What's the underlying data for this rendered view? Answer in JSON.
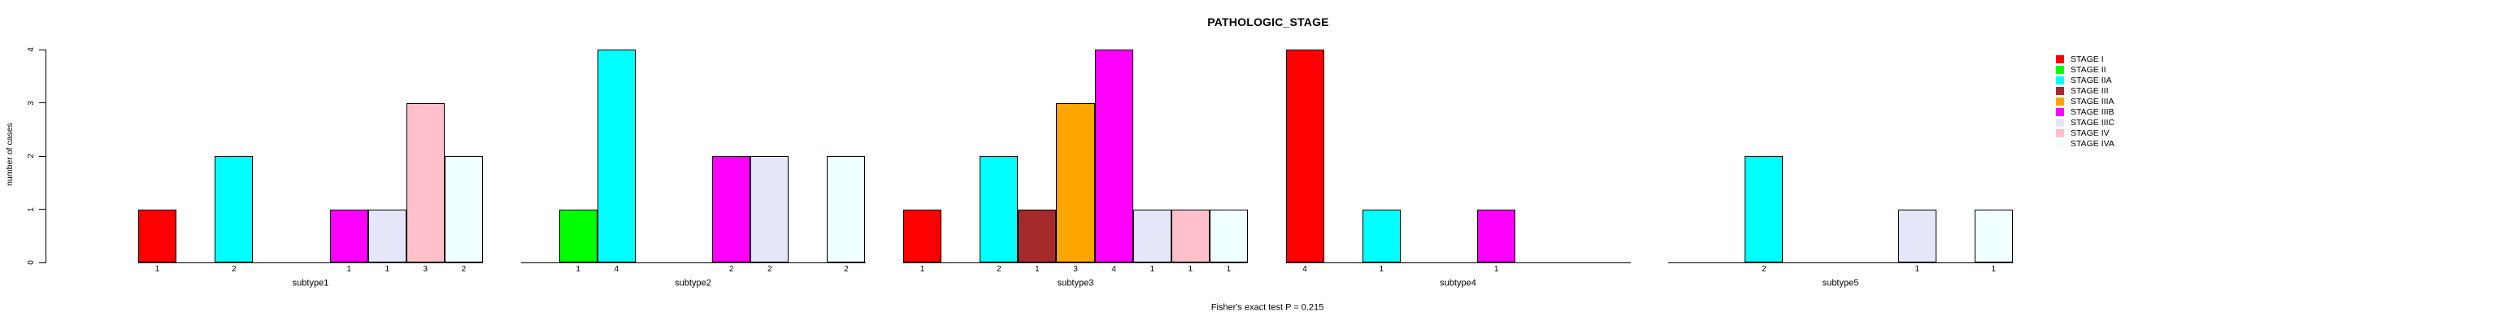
{
  "chart_data": {
    "type": "bar",
    "title": "PATHOLOGIC_STAGE",
    "xlabel": "",
    "ylabel": "number of cases",
    "footer": "Fisher's exact test P = 0.215",
    "ylim": [
      0,
      4
    ],
    "yticks": [
      "0",
      "1",
      "2",
      "3",
      "4"
    ],
    "grid": false,
    "legend_position": "top-right",
    "bar_value_labels_shown": true,
    "stages": [
      {
        "label": "STAGE I",
        "color": "#FF0000"
      },
      {
        "label": "STAGE II",
        "color": "#00FF00"
      },
      {
        "label": "STAGE IIA",
        "color": "#00FFFF"
      },
      {
        "label": "STAGE III",
        "color": "#A52A2A"
      },
      {
        "label": "STAGE IIIA",
        "color": "#FFA500"
      },
      {
        "label": "STAGE IIIB",
        "color": "#FF00FF"
      },
      {
        "label": "STAGE IIIC",
        "color": "#E6E6FA"
      },
      {
        "label": "STAGE IV",
        "color": "#FFC0CB"
      },
      {
        "label": "STAGE IVA",
        "color": "#F0FFFF"
      }
    ],
    "panels": [
      {
        "label": "subtype1",
        "bars": [
          {
            "stage": "STAGE I",
            "value": 1
          },
          {
            "stage": "STAGE IIA",
            "value": 2
          },
          {
            "stage": "STAGE IIIB",
            "value": 1
          },
          {
            "stage": "STAGE IIIC",
            "value": 1
          },
          {
            "stage": "STAGE IV",
            "value": 3
          },
          {
            "stage": "STAGE IVA",
            "value": 2
          }
        ]
      },
      {
        "label": "subtype2",
        "bars": [
          {
            "stage": "STAGE II",
            "value": 1
          },
          {
            "stage": "STAGE IIA",
            "value": 4
          },
          {
            "stage": "STAGE IIIB",
            "value": 2
          },
          {
            "stage": "STAGE IIIC",
            "value": 2
          },
          {
            "stage": "STAGE IVA",
            "value": 2
          }
        ]
      },
      {
        "label": "subtype3",
        "bars": [
          {
            "stage": "STAGE I",
            "value": 1
          },
          {
            "stage": "STAGE IIA",
            "value": 2
          },
          {
            "stage": "STAGE III",
            "value": 1
          },
          {
            "stage": "STAGE IIIA",
            "value": 3
          },
          {
            "stage": "STAGE IIIB",
            "value": 4
          },
          {
            "stage": "STAGE IIIC",
            "value": 1
          },
          {
            "stage": "STAGE IV",
            "value": 1
          },
          {
            "stage": "STAGE IVA",
            "value": 1
          }
        ]
      },
      {
        "label": "subtype4",
        "bars": [
          {
            "stage": "STAGE I",
            "value": 4
          },
          {
            "stage": "STAGE IIA",
            "value": 1
          },
          {
            "stage": "STAGE IIIB",
            "value": 1
          }
        ]
      },
      {
        "label": "subtype5",
        "bars": [
          {
            "stage": "STAGE IIA",
            "value": 2
          },
          {
            "stage": "STAGE IIIC",
            "value": 1
          },
          {
            "stage": "STAGE IVA",
            "value": 1
          }
        ]
      }
    ]
  },
  "colors": {
    "background": "#FFFFFF",
    "axis": "#000000",
    "text": "#000000"
  }
}
